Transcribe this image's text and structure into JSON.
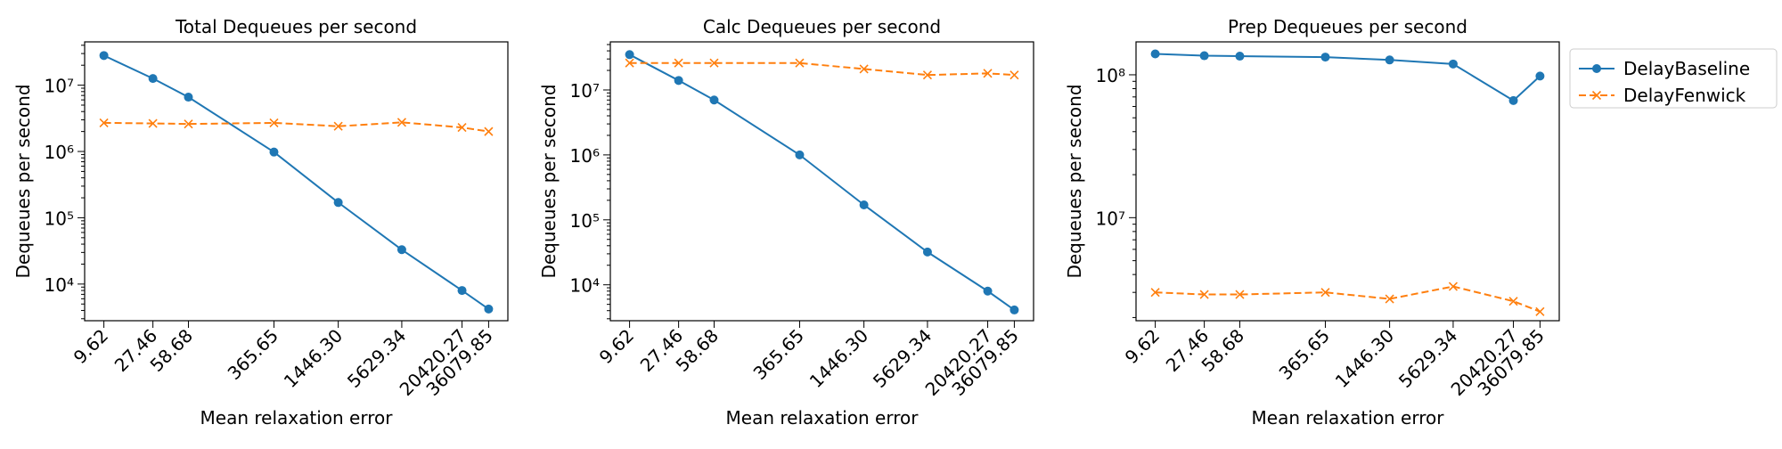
{
  "chart_data": [
    {
      "type": "line",
      "title": "Total Dequeues per second",
      "xlabel": "Mean relaxation error",
      "ylabel": "Dequeues per second",
      "yscale": "log",
      "ylim": [
        2800,
        45000000
      ],
      "x": [
        9.62,
        27.46,
        58.68,
        365.65,
        1446.3,
        5629.34,
        20420.27,
        36079.85
      ],
      "x_tick_labels": [
        "9.62",
        "27.46",
        "58.68",
        "365.65",
        "1446.30",
        "5629.34",
        "20420.27",
        "36079.85"
      ],
      "y_ticks": [
        10000,
        100000,
        1000000,
        10000000
      ],
      "grid": false,
      "series": [
        {
          "name": "DelayBaseline",
          "color": "#1f77b4",
          "marker": "circle",
          "linestyle": "solid",
          "values": [
            28000000,
            12600000,
            6600000,
            980000,
            170000,
            33000,
            8000,
            4200
          ]
        },
        {
          "name": "DelayFenwick",
          "color": "#ff7f0e",
          "marker": "x",
          "linestyle": "dashed",
          "values": [
            2700000,
            2650000,
            2600000,
            2700000,
            2400000,
            2750000,
            2300000,
            2000000
          ]
        }
      ]
    },
    {
      "type": "line",
      "title": "Calc Dequeues per second",
      "xlabel": "Mean relaxation error",
      "ylabel": "Dequeues per second",
      "yscale": "log",
      "ylim": [
        2800,
        55000000
      ],
      "x": [
        9.62,
        27.46,
        58.68,
        365.65,
        1446.3,
        5629.34,
        20420.27,
        36079.85
      ],
      "x_tick_labels": [
        "9.62",
        "27.46",
        "58.68",
        "365.65",
        "1446.30",
        "5629.34",
        "20420.27",
        "36079.85"
      ],
      "y_ticks": [
        10000,
        100000,
        1000000,
        10000000
      ],
      "grid": false,
      "series": [
        {
          "name": "DelayBaseline",
          "color": "#1f77b4",
          "marker": "circle",
          "linestyle": "solid",
          "values": [
            35000000,
            14000000,
            7000000,
            1000000,
            170000,
            32000,
            8000,
            4100
          ]
        },
        {
          "name": "DelayFenwick",
          "color": "#ff7f0e",
          "marker": "x",
          "linestyle": "dashed",
          "values": [
            26000000,
            26000000,
            26000000,
            26000000,
            21000000,
            17000000,
            18000000,
            17000000
          ]
        }
      ]
    },
    {
      "type": "line",
      "title": "Prep Dequeues per second",
      "xlabel": "Mean relaxation error",
      "ylabel": "Dequeues per second",
      "yscale": "log",
      "ylim": [
        1900000,
        170000000
      ],
      "x": [
        9.62,
        27.46,
        58.68,
        365.65,
        1446.3,
        5629.34,
        20420.27,
        36079.85
      ],
      "x_tick_labels": [
        "9.62",
        "27.46",
        "58.68",
        "365.65",
        "1446.30",
        "5629.34",
        "20420.27",
        "36079.85"
      ],
      "y_ticks": [
        10000000,
        100000000
      ],
      "grid": false,
      "legend": {
        "placement": "outside-top-right",
        "entries": [
          "DelayBaseline",
          "DelayFenwick"
        ]
      },
      "series": [
        {
          "name": "DelayBaseline",
          "color": "#1f77b4",
          "marker": "circle",
          "linestyle": "solid",
          "values": [
            140000000,
            136000000,
            135000000,
            133000000,
            127000000,
            119000000,
            66000000,
            98000000
          ]
        },
        {
          "name": "DelayFenwick",
          "color": "#ff7f0e",
          "marker": "x",
          "linestyle": "dashed",
          "values": [
            3000000,
            2900000,
            2900000,
            3000000,
            2700000,
            3300000,
            2600000,
            2200000
          ]
        }
      ]
    }
  ]
}
